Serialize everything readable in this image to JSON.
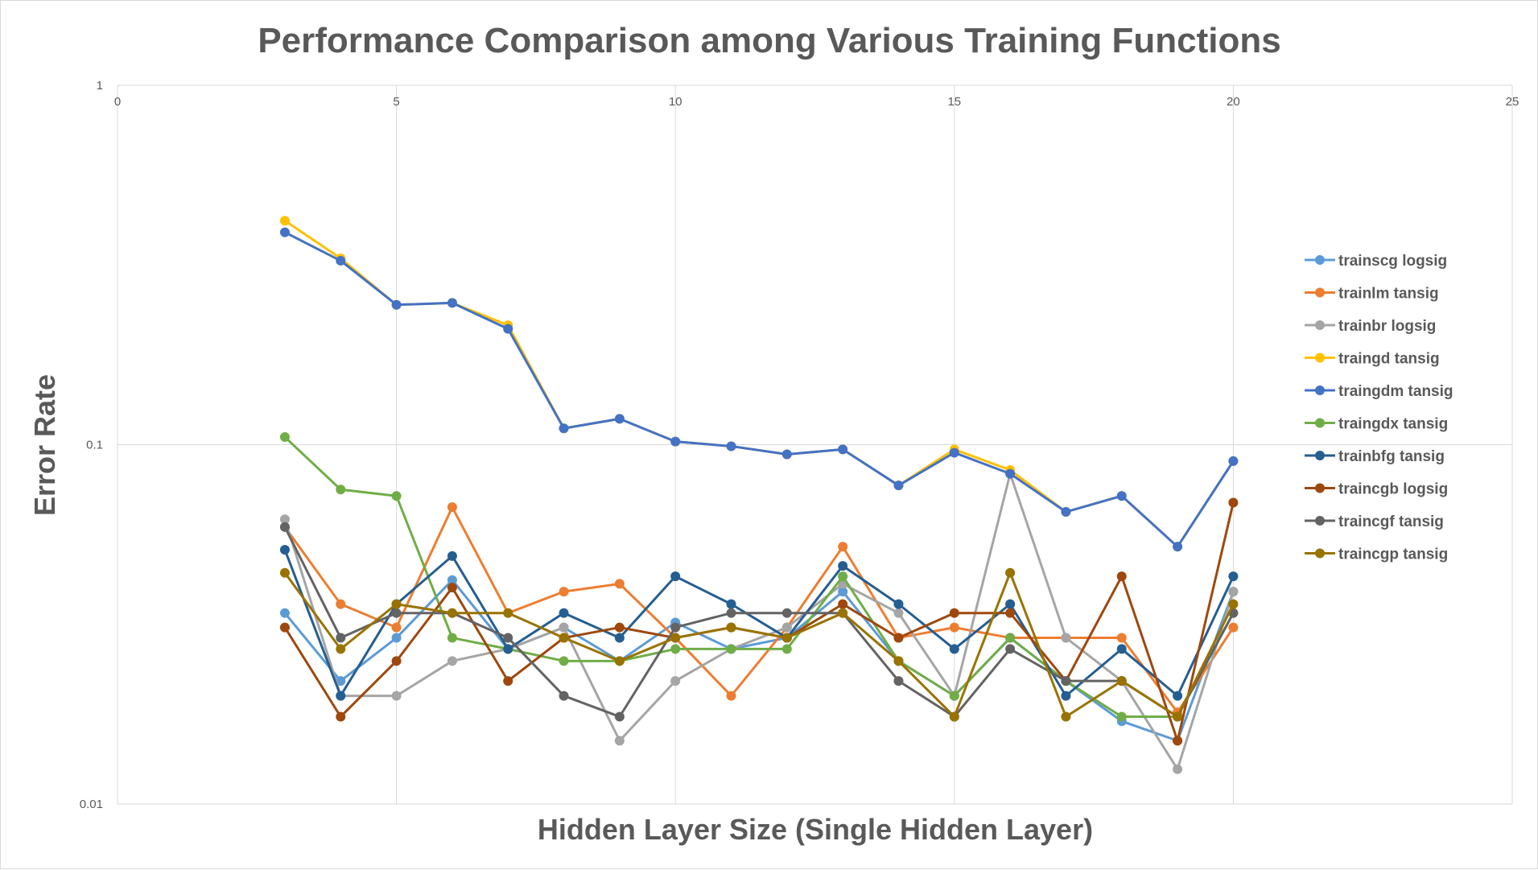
{
  "chart_data": {
    "type": "line",
    "title": "Performance Comparison among Various Training Functions",
    "xlabel": "Hidden Layer Size (Single Hidden Layer)",
    "ylabel": "Error Rate",
    "xlim": [
      0,
      25
    ],
    "ylim": [
      0.01,
      1
    ],
    "yscale": "log",
    "x_ticks": [
      0,
      5,
      10,
      15,
      20,
      25
    ],
    "y_ticks": [
      0.01,
      0.1,
      1
    ],
    "y_tick_labels": [
      "0.01",
      "0.1",
      "1"
    ],
    "x_axis_position": "top",
    "grid": true,
    "legend_position": "right",
    "x": [
      3,
      4,
      5,
      6,
      7,
      8,
      9,
      10,
      11,
      12,
      13,
      14,
      15,
      16,
      17,
      18,
      19,
      20
    ],
    "series": [
      {
        "name": "trainscg logsig",
        "color": "#5B9BD5",
        "values": [
          0.034,
          0.022,
          0.029,
          0.042,
          0.027,
          0.031,
          0.025,
          0.032,
          0.027,
          0.029,
          0.039,
          0.025,
          0.02,
          0.029,
          0.022,
          0.017,
          0.015,
          0.039
        ]
      },
      {
        "name": "trainlm tansig",
        "color": "#ED7D31",
        "values": [
          0.059,
          0.036,
          0.031,
          0.067,
          0.034,
          0.039,
          0.041,
          0.029,
          0.02,
          0.031,
          0.052,
          0.029,
          0.031,
          0.029,
          0.029,
          0.029,
          0.018,
          0.031
        ]
      },
      {
        "name": "trainbr logsig",
        "color": "#A5A5A5",
        "values": [
          0.062,
          0.02,
          0.02,
          0.025,
          0.027,
          0.031,
          0.015,
          0.022,
          0.027,
          0.031,
          0.041,
          0.034,
          0.02,
          0.083,
          0.029,
          0.022,
          0.0125,
          0.039
        ]
      },
      {
        "name": "traingd tansig",
        "color": "#FFC000",
        "values": [
          0.42,
          0.33,
          0.245,
          0.248,
          0.215,
          0.111,
          0.118,
          0.102,
          0.099,
          0.094,
          0.097,
          0.077,
          0.097,
          0.085,
          0.065,
          0.072,
          0.052,
          0.09
        ]
      },
      {
        "name": "traingdm tansig",
        "color": "#4472C4",
        "values": [
          0.39,
          0.325,
          0.245,
          0.248,
          0.21,
          0.111,
          0.118,
          0.102,
          0.099,
          0.094,
          0.097,
          0.077,
          0.095,
          0.083,
          0.065,
          0.072,
          0.052,
          0.09
        ]
      },
      {
        "name": "traingdx tansig",
        "color": "#70AD47",
        "values": [
          0.105,
          0.075,
          0.072,
          0.029,
          0.027,
          0.025,
          0.025,
          0.027,
          0.027,
          0.027,
          0.043,
          0.025,
          0.02,
          0.029,
          0.022,
          0.0175,
          0.0175,
          0.034
        ]
      },
      {
        "name": "trainbfg tansig",
        "color": "#255E91",
        "values": [
          0.051,
          0.02,
          0.036,
          0.049,
          0.027,
          0.034,
          0.029,
          0.043,
          0.036,
          0.029,
          0.046,
          0.036,
          0.027,
          0.036,
          0.02,
          0.027,
          0.02,
          0.043
        ]
      },
      {
        "name": "traincgb logsig",
        "color": "#9E480E",
        "values": [
          0.031,
          0.0175,
          0.025,
          0.04,
          0.022,
          0.029,
          0.031,
          0.029,
          0.031,
          0.029,
          0.036,
          0.029,
          0.034,
          0.034,
          0.022,
          0.043,
          0.015,
          0.069
        ]
      },
      {
        "name": "traincgf tansig",
        "color": "#636363",
        "values": [
          0.059,
          0.029,
          0.034,
          0.034,
          0.029,
          0.02,
          0.0175,
          0.031,
          0.034,
          0.034,
          0.034,
          0.022,
          0.0175,
          0.027,
          0.022,
          0.022,
          0.0175,
          0.034
        ]
      },
      {
        "name": "traincgp tansig",
        "color": "#997300",
        "values": [
          0.044,
          0.027,
          0.036,
          0.034,
          0.034,
          0.029,
          0.025,
          0.029,
          0.031,
          0.029,
          0.034,
          0.025,
          0.0175,
          0.044,
          0.0175,
          0.022,
          0.0175,
          0.036
        ]
      }
    ]
  }
}
